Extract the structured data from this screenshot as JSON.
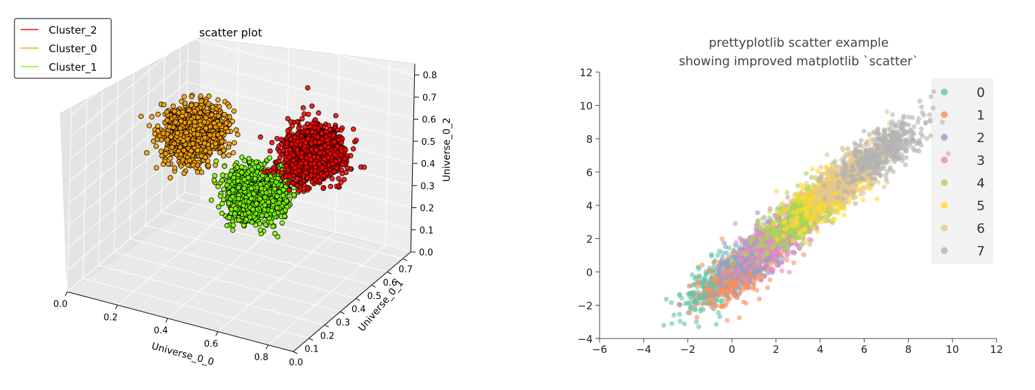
{
  "chart_data": [
    {
      "type": "scatter",
      "projection": "3d",
      "title": "scatter plot",
      "xlabel": "Universe_0_0",
      "ylabel": "Universe_0_1",
      "zlabel": "Universe_0_2",
      "xlim": [
        0.0,
        0.9
      ],
      "ylim": [
        0.0,
        0.75
      ],
      "zlim": [
        0.0,
        0.85
      ],
      "xticks": [
        "0.0",
        "0.2",
        "0.4",
        "0.6",
        "0.8"
      ],
      "yticks": [
        "0.0",
        "0.1",
        "0.2",
        "0.3",
        "0.4",
        "0.5",
        "0.6",
        "0.7"
      ],
      "zticks": [
        "0.0",
        "0.1",
        "0.2",
        "0.3",
        "0.4",
        "0.5",
        "0.6",
        "0.7",
        "0.8"
      ],
      "grid": true,
      "legend_position": "top-left",
      "series": [
        {
          "name": "Cluster_2",
          "color": "#ff0000",
          "center": [
            0.72,
            0.4,
            0.6
          ],
          "spread": [
            0.05,
            0.05,
            0.05
          ],
          "n": 1400
        },
        {
          "name": "Cluster_0",
          "color": "#ffa500",
          "center": [
            0.25,
            0.4,
            0.55
          ],
          "spread": [
            0.05,
            0.05,
            0.05
          ],
          "n": 1400
        },
        {
          "name": "Cluster_1",
          "color": "#7fff00",
          "center": [
            0.5,
            0.4,
            0.35
          ],
          "spread": [
            0.05,
            0.05,
            0.05
          ],
          "n": 1400
        }
      ]
    },
    {
      "type": "scatter",
      "title": "prettyplotlib   scatter   example\nshowing improved matplotlib `scatter`",
      "title_lines": [
        "prettyplotlib   scatter   example",
        "showing improved matplotlib `scatter`"
      ],
      "xlim": [
        -6,
        12
      ],
      "ylim": [
        -4,
        12
      ],
      "xticks": [
        "−6",
        "−4",
        "−2",
        "0",
        "2",
        "4",
        "6",
        "8",
        "10",
        "12"
      ],
      "yticks": [
        "−4",
        "−2",
        "0",
        "2",
        "4",
        "6",
        "8",
        "10",
        "12"
      ],
      "grid": false,
      "legend_position": "right",
      "series": [
        {
          "name": "0",
          "color": "#66c2a5",
          "center": [
            -0.5,
            -0.5
          ],
          "n": 420
        },
        {
          "name": "1",
          "color": "#fc8d62",
          "center": [
            0.5,
            0.0
          ],
          "n": 420
        },
        {
          "name": "2",
          "color": "#8da0cb",
          "center": [
            1.5,
            1.5
          ],
          "n": 420
        },
        {
          "name": "3",
          "color": "#e78ac3",
          "center": [
            2.2,
            2.3
          ],
          "n": 420
        },
        {
          "name": "4",
          "color": "#a6d854",
          "center": [
            3.2,
            3.5
          ],
          "n": 420
        },
        {
          "name": "5",
          "color": "#ffd92f",
          "center": [
            4.5,
            4.8
          ],
          "n": 420
        },
        {
          "name": "6",
          "color": "#e5c494",
          "center": [
            5.5,
            6.0
          ],
          "n": 420
        },
        {
          "name": "7",
          "color": "#b3b3b3",
          "center": [
            6.8,
            7.2
          ],
          "n": 420
        }
      ]
    }
  ]
}
